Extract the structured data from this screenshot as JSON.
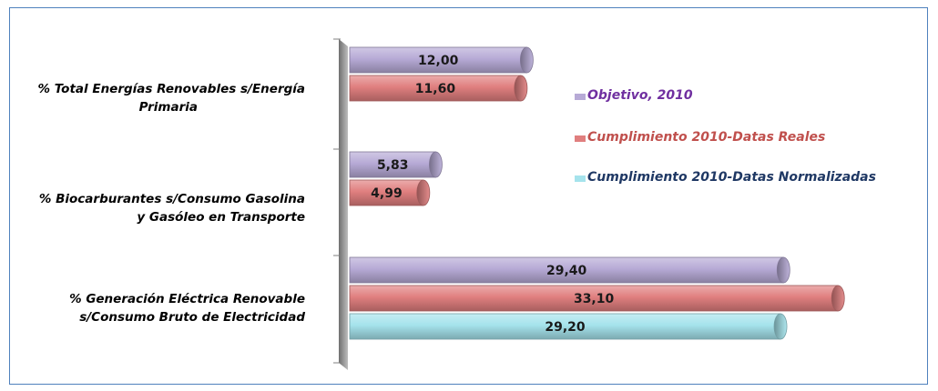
{
  "chart_data": {
    "type": "bar",
    "orientation": "horizontal",
    "categories": [
      [
        "% Total Energías Renovables s/Energía",
        "Primaria"
      ],
      [
        "% Biocarburantes s/Consumo Gasolina",
        "y Gasóleo en Transporte"
      ],
      [
        "% Generación Eléctrica Renovable",
        "s/Consumo Bruto de Electricidad"
      ]
    ],
    "series": [
      {
        "name": "Objetivo, 2010",
        "values": [
          12.0,
          5.83,
          29.4
        ],
        "labels": [
          "12,00",
          "5,83",
          "29,40"
        ],
        "color": "#b7aad6",
        "legend_color": "#7030a0"
      },
      {
        "name": "Cumplimiento 2010-Datas Reales",
        "values": [
          11.6,
          4.99,
          33.1
        ],
        "labels": [
          "11,60",
          "4,99",
          "33,10"
        ],
        "color": "#e07f7f",
        "legend_color": "#c0504d"
      },
      {
        "name": "Cumplimiento 2010-Datas Normalizadas",
        "values": [
          null,
          null,
          29.2
        ],
        "labels": [
          "",
          "",
          "29,20"
        ],
        "color": "#a5e3ec",
        "legend_color": "#1f3864"
      }
    ],
    "xlim": [
      0,
      35
    ],
    "grid": false,
    "legend_position": "right",
    "style": "3d-cylinder"
  }
}
